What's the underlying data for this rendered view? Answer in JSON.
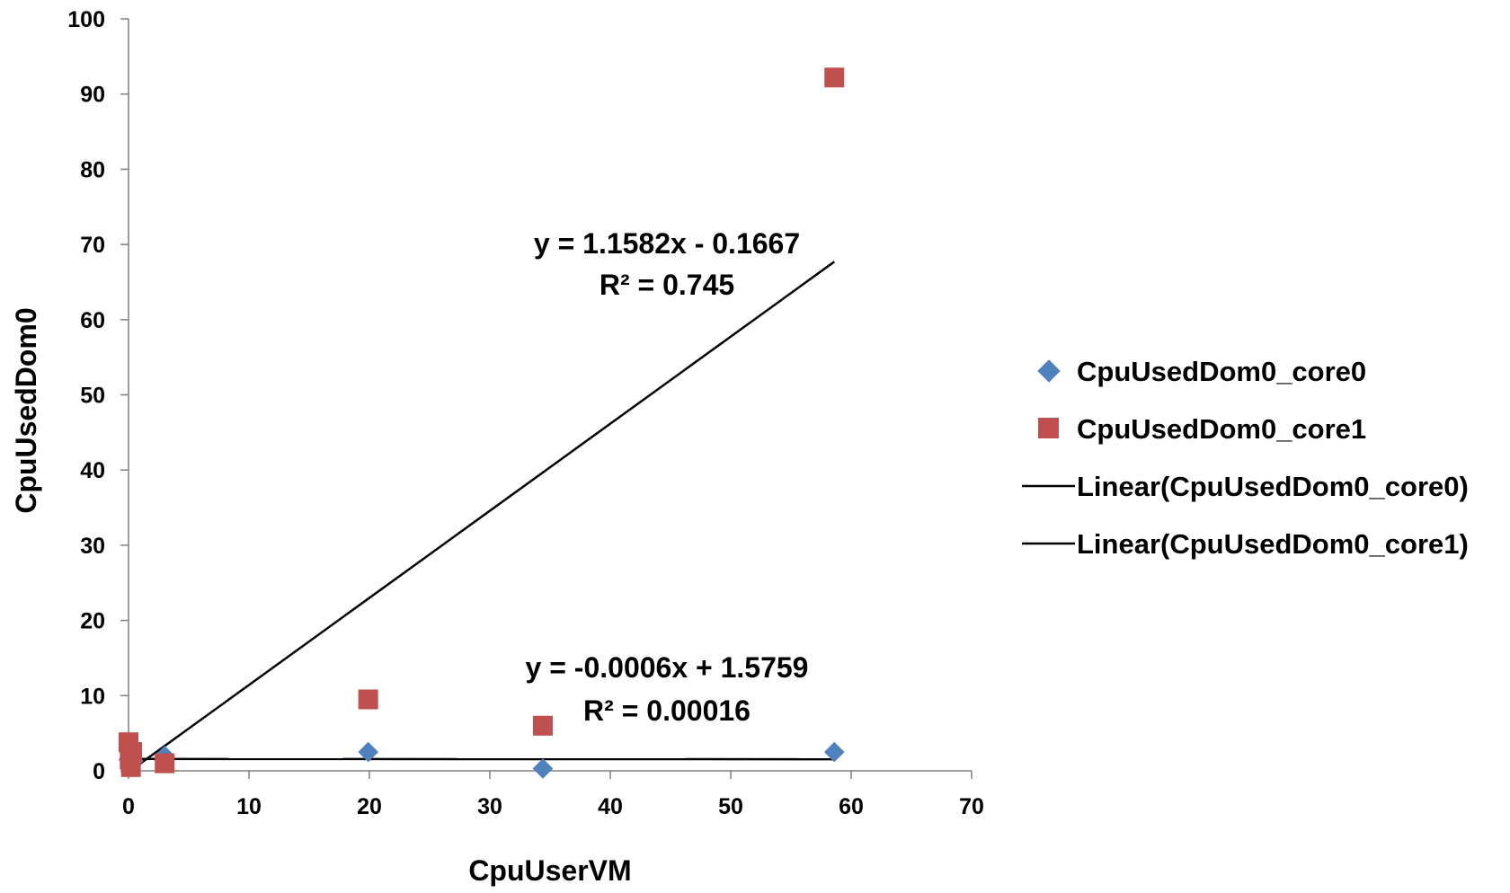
{
  "chart_data": {
    "type": "scatter",
    "xlabel": "CpuUserVM",
    "ylabel": "CpuUsedDom0",
    "xlim": [
      0,
      70
    ],
    "ylim": [
      0,
      100
    ],
    "xticks": [
      0,
      10,
      20,
      30,
      40,
      50,
      60,
      70
    ],
    "yticks": [
      0,
      10,
      20,
      30,
      40,
      50,
      60,
      70,
      80,
      90,
      100
    ],
    "grid": false,
    "legend_position": "right",
    "series": [
      {
        "name": "CpuUsedDom0_core0",
        "marker": "diamond",
        "color": "#4f81bd",
        "points": [
          [
            0,
            1.5
          ],
          [
            0.2,
            2.0
          ],
          [
            0.4,
            1.3
          ],
          [
            3,
            2.0
          ],
          [
            19.9,
            2.5
          ],
          [
            34.4,
            0.3
          ],
          [
            58.6,
            2.5
          ]
        ]
      },
      {
        "name": "CpuUsedDom0_core1",
        "marker": "square",
        "color": "#c0504d",
        "points": [
          [
            0,
            3.8
          ],
          [
            0.1,
            1.5
          ],
          [
            0.3,
            2.5
          ],
          [
            0.2,
            0.5
          ],
          [
            3,
            1.0
          ],
          [
            19.9,
            9.5
          ],
          [
            34.4,
            6.0
          ],
          [
            58.6,
            92.2
          ]
        ]
      },
      {
        "name": "Linear(CpuUsedDom0_core0)",
        "type": "trendline",
        "color": "#000000",
        "slope": -0.0006,
        "intercept": 1.5759,
        "x_range": [
          0,
          58.6
        ]
      },
      {
        "name": "Linear(CpuUsedDom0_core1)",
        "type": "trendline",
        "color": "#000000",
        "slope": 1.1582,
        "intercept": -0.1667,
        "x_range": [
          0,
          58.6
        ]
      }
    ],
    "annotations": [
      {
        "equation": "y = 1.1582x - 0.1667",
        "r2": "R² = 0.745"
      },
      {
        "equation": "y = -0.0006x + 1.5759",
        "r2": "R² = 0.00016"
      }
    ]
  }
}
